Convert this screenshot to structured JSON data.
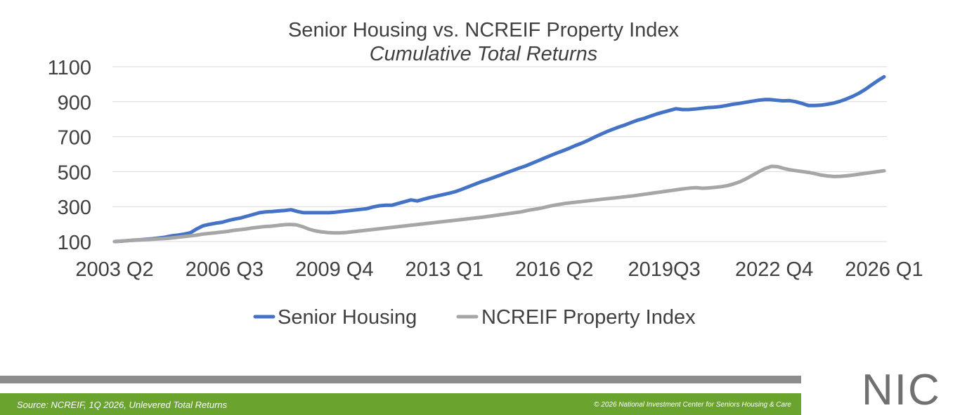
{
  "chart_data": {
    "type": "line",
    "title": "Senior Housing vs. NCREIF Property Index",
    "subtitle": "Cumulative Total Returns",
    "xlabel": "",
    "ylabel": "",
    "ylim": [
      100,
      1100
    ],
    "yticks": [
      100,
      300,
      500,
      700,
      900,
      1100
    ],
    "xtick_labels": [
      "2003 Q2",
      "2006 Q3",
      "2009 Q4",
      "2013 Q1",
      "2016 Q2",
      "2019Q3",
      "2022 Q4",
      "2026 Q1"
    ],
    "grid": true,
    "legend_position": "bottom",
    "x_start": "2003 Q2",
    "x_end": "2026 Q1",
    "series": [
      {
        "name": "Senior Housing",
        "color": "#4472c4",
        "values": [
          100,
          102,
          105,
          108,
          110,
          113,
          116,
          120,
          125,
          132,
          137,
          142,
          150,
          172,
          190,
          198,
          205,
          210,
          220,
          228,
          235,
          245,
          255,
          265,
          270,
          272,
          275,
          278,
          282,
          272,
          265,
          265,
          265,
          265,
          265,
          268,
          272,
          276,
          280,
          284,
          288,
          298,
          305,
          308,
          308,
          318,
          328,
          338,
          332,
          342,
          352,
          360,
          368,
          376,
          385,
          398,
          412,
          426,
          440,
          452,
          465,
          478,
          492,
          505,
          518,
          530,
          545,
          560,
          575,
          590,
          605,
          618,
          632,
          648,
          662,
          678,
          695,
          712,
          728,
          742,
          756,
          768,
          782,
          795,
          805,
          818,
          830,
          840,
          850,
          860,
          855,
          855,
          858,
          862,
          866,
          868,
          872,
          878,
          885,
          890,
          896,
          902,
          908,
          912,
          912,
          908,
          905,
          906,
          900,
          890,
          878,
          878,
          880,
          885,
          892,
          902,
          915,
          930,
          948,
          970,
          995,
          1020,
          1042
        ]
      },
      {
        "name": "NCREIF Property Index",
        "color": "#a6a6a6",
        "values": [
          100,
          103,
          105,
          107,
          109,
          111,
          113,
          115,
          117,
          120,
          124,
          128,
          132,
          136,
          142,
          146,
          150,
          154,
          158,
          164,
          168,
          172,
          178,
          182,
          186,
          188,
          192,
          196,
          198,
          196,
          186,
          172,
          162,
          156,
          152,
          150,
          150,
          152,
          156,
          160,
          164,
          168,
          172,
          176,
          180,
          184,
          188,
          192,
          196,
          200,
          204,
          208,
          212,
          216,
          220,
          224,
          228,
          232,
          236,
          240,
          245,
          250,
          255,
          260,
          265,
          270,
          278,
          284,
          290,
          298,
          306,
          312,
          318,
          322,
          326,
          330,
          334,
          338,
          342,
          346,
          350,
          354,
          358,
          362,
          367,
          372,
          377,
          382,
          387,
          392,
          397,
          402,
          406,
          408,
          405,
          407,
          410,
          414,
          420,
          430,
          442,
          460,
          480,
          500,
          518,
          530,
          528,
          518,
          510,
          505,
          500,
          495,
          488,
          480,
          475,
          472,
          473,
          476,
          480,
          485,
          490,
          495,
          500,
          505
        ]
      }
    ]
  },
  "footer": {
    "source": "Source: NCREIF, 1Q 2026, Unlevered Total Returns",
    "copyright": "© 2026 National Investment Center for Seniors Housing & Care"
  },
  "logo": {
    "text": "NIC",
    "icon": "nic-logo-icon",
    "accent_color": "#6aa42f"
  }
}
